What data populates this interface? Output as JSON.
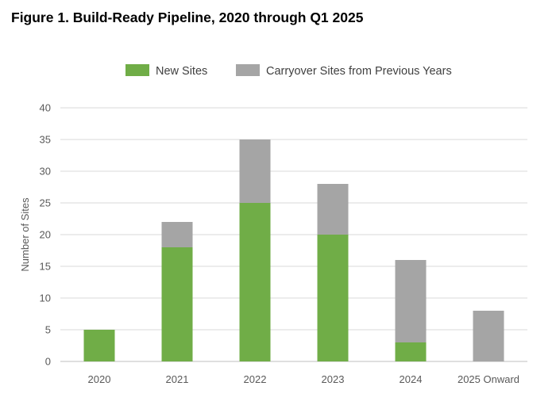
{
  "figure": {
    "title": "Figure 1. Build-Ready Pipeline, 2020 through Q1 2025"
  },
  "chart_data": {
    "type": "bar",
    "stacked": true,
    "title": "Figure 1. Build-Ready Pipeline, 2020 through Q1 2025",
    "xlabel": "",
    "ylabel": "Number of Sites",
    "ylim": [
      0,
      40
    ],
    "yticks": [
      0,
      5,
      10,
      15,
      20,
      25,
      30,
      35,
      40
    ],
    "grid": true,
    "legend_position": "top",
    "categories": [
      "2020",
      "2021",
      "2022",
      "2023",
      "2024",
      "2025 Onward"
    ],
    "series": [
      {
        "name": "New Sites",
        "color": "#70ad47",
        "values": [
          5,
          18,
          25,
          20,
          3,
          0
        ]
      },
      {
        "name": "Carryover Sites from Previous Years",
        "color": "#a5a5a5",
        "values": [
          0,
          4,
          10,
          8,
          13,
          8
        ]
      }
    ]
  }
}
